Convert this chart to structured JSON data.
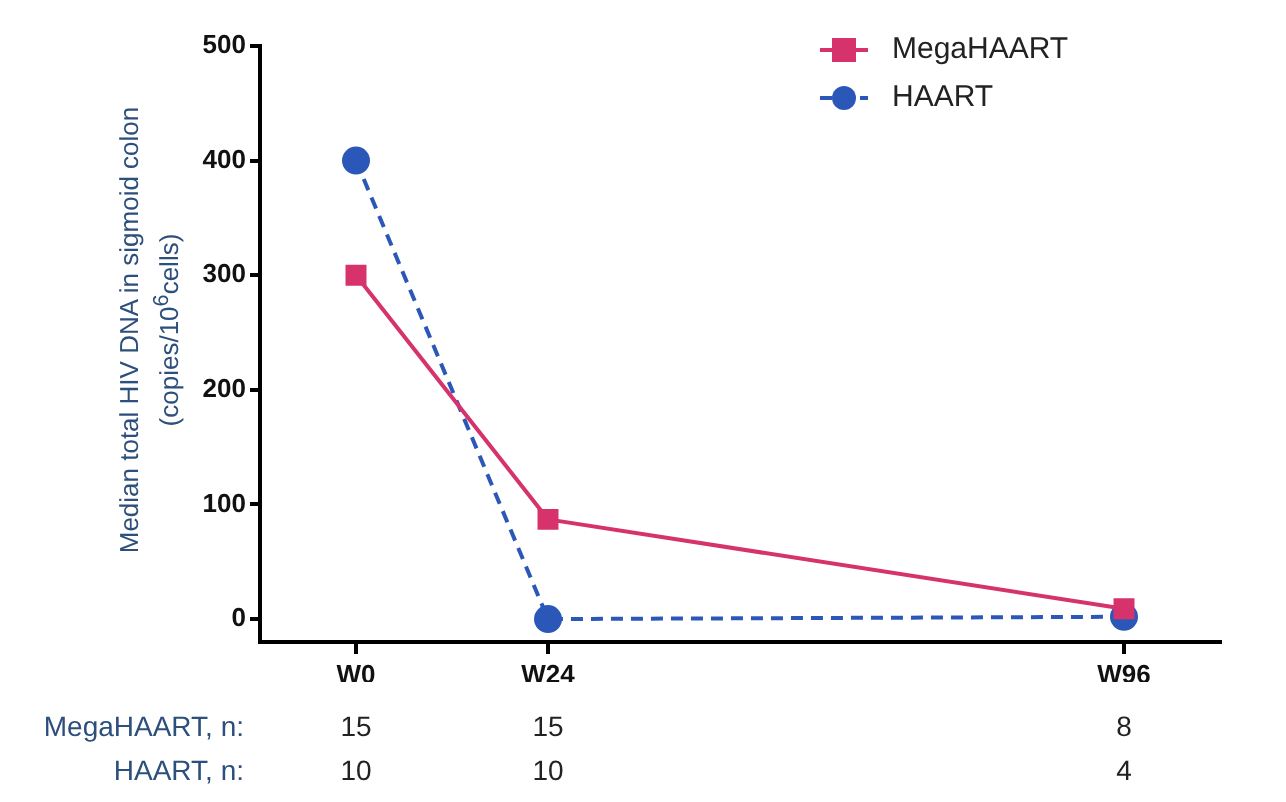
{
  "chart_data": {
    "type": "line",
    "ylabel": "Median total HIV DNA in sigmoid colon (copies/10$^{6}$cells)",
    "categories": [
      "W0",
      "W24",
      null,
      null,
      "W96"
    ],
    "ylim": [
      -20,
      500
    ],
    "yticks": [
      0,
      100,
      200,
      300,
      400,
      500
    ],
    "grid": false,
    "legend": "top right",
    "series": [
      {
        "name": "MegaHAART",
        "color": "#d6336c",
        "values": [
          300,
          87,
          null,
          null,
          9
        ],
        "marker": "square",
        "line_style": "solid"
      },
      {
        "name": "HAART",
        "color": "#2b58b8",
        "values": [
          400,
          0,
          null,
          null,
          2
        ],
        "marker": "circle",
        "line_style": "dashed"
      }
    ],
    "annotations": [
      "MegaHAART, n:",
      "15",
      "15",
      "8",
      "HAART, n:",
      "10",
      "10",
      "4"
    ]
  }
}
